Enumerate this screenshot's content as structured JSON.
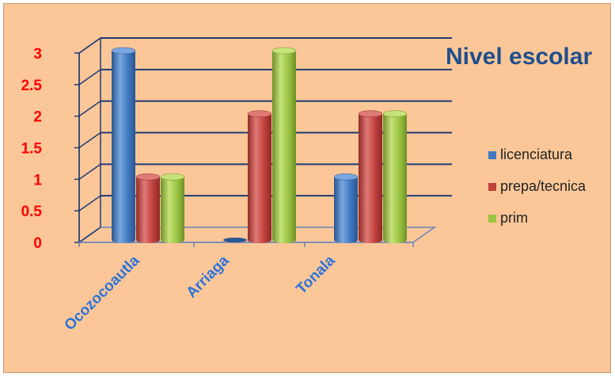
{
  "chart_data": {
    "type": "bar",
    "title": "Nivel escolar",
    "categories": [
      "Ocozocoautla",
      "Arriaga",
      "Tonala"
    ],
    "series": [
      {
        "name": "licenciatura",
        "values": [
          3,
          0,
          1
        ]
      },
      {
        "name": "prepa/tecnica",
        "values": [
          1,
          2,
          2
        ]
      },
      {
        "name": "prim",
        "values": [
          1,
          3,
          2
        ]
      }
    ],
    "yticks": [
      "0",
      "0.5",
      "1",
      "1.5",
      "2",
      "2.5",
      "3"
    ],
    "ylim": [
      0,
      3
    ],
    "grid": true,
    "legend_position": "right",
    "style": "3d-cylinder"
  },
  "colors": {
    "background": "#fbc798",
    "series": [
      "#3f77bf",
      "#c0403c",
      "#9ac340"
    ],
    "series_light": [
      "#7aa6e0",
      "#e07a76",
      "#c6e27a"
    ],
    "series_dark": [
      "#2a558f",
      "#8f2a27",
      "#6f9128"
    ],
    "tick_labels": "#ff0000",
    "category_labels": "#2b73d9",
    "title": "#1f4e8c",
    "gridlines": "#1f3b73"
  }
}
